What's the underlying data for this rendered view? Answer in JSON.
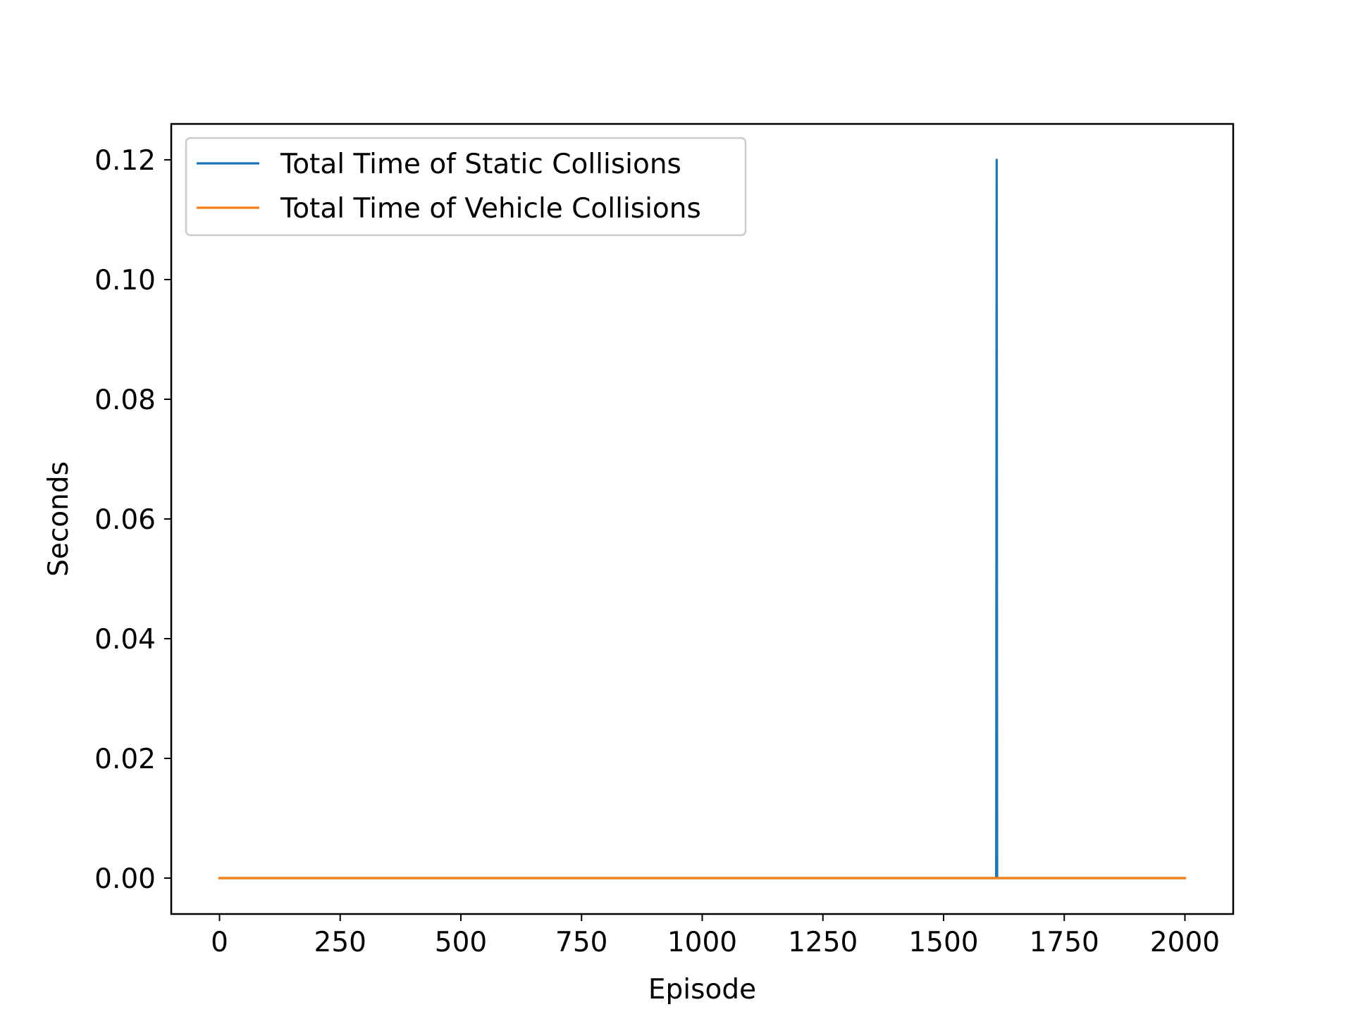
{
  "chart_data": {
    "type": "line",
    "title": "",
    "xlabel": "Episode",
    "ylabel": "Seconds",
    "xlim": [
      -100,
      2100
    ],
    "ylim": [
      -0.006,
      0.126
    ],
    "x_ticks": [
      0,
      250,
      500,
      750,
      1000,
      1250,
      1500,
      1750,
      2000
    ],
    "x_tick_labels": [
      "0",
      "250",
      "500",
      "750",
      "1000",
      "1250",
      "1500",
      "1750",
      "2000"
    ],
    "y_ticks": [
      0.0,
      0.02,
      0.04,
      0.06,
      0.08,
      0.1,
      0.12
    ],
    "y_tick_labels": [
      "0.00",
      "0.02",
      "0.04",
      "0.06",
      "0.08",
      "0.10",
      "0.12"
    ],
    "grid": false,
    "legend_position": "upper-left",
    "series": [
      {
        "name": "Total Time of Static Collisions",
        "color": "#1f77b4",
        "x": [
          0,
          1609,
          1610,
          1611,
          2000
        ],
        "y": [
          0,
          0,
          0.12,
          0,
          0
        ]
      },
      {
        "name": "Total Time of Vehicle Collisions",
        "color": "#ff7f0e",
        "x": [
          0,
          2000
        ],
        "y": [
          0,
          0
        ]
      }
    ]
  }
}
